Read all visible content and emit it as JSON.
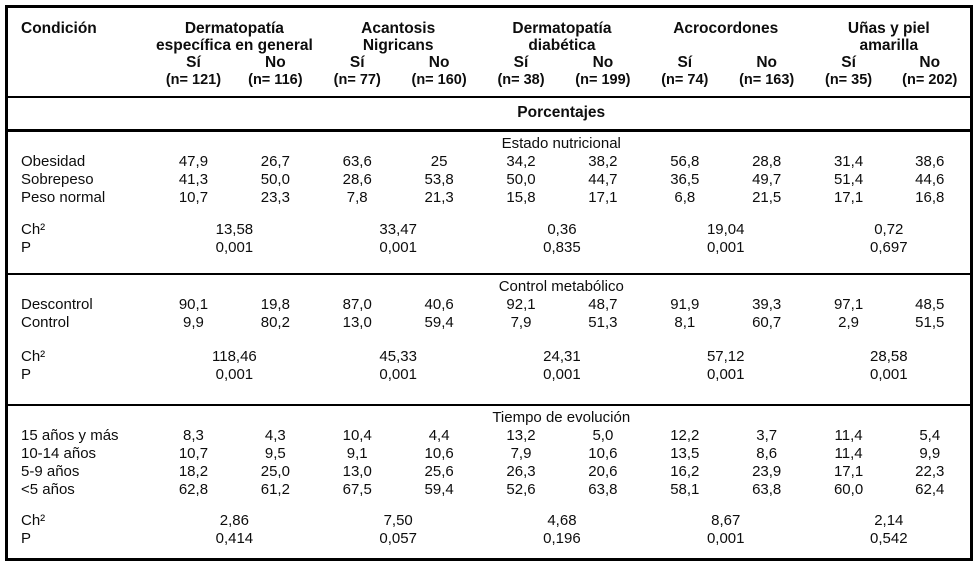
{
  "table": {
    "corner_label": "Condición",
    "percent_header": "Porcentajes",
    "groups": [
      {
        "title_line1": "Dermatopatía",
        "title_line2": "específica en general",
        "si_label": "Sí",
        "no_label": "No",
        "si_n": "(n= 121)",
        "no_n": "(n= 116)"
      },
      {
        "title_line1": "Acantosis",
        "title_line2": "Nigricans",
        "si_label": "Sí",
        "no_label": "No",
        "si_n": "(n= 77)",
        "no_n": "(n= 160)"
      },
      {
        "title_line1": "Dermatopatía",
        "title_line2": "diabética",
        "si_label": "Sí",
        "no_label": "No",
        "si_n": "(n= 38)",
        "no_n": "(n= 199)"
      },
      {
        "title_line1": "Acrocordones",
        "title_line2": "",
        "si_label": "Sí",
        "no_label": "No",
        "si_n": "(n= 74)",
        "no_n": "(n= 163)"
      },
      {
        "title_line1": "Uñas y piel",
        "title_line2": "amarilla",
        "si_label": "Sí",
        "no_label": "No",
        "si_n": "(n= 35)",
        "no_n": "(n= 202)"
      }
    ],
    "sections": [
      {
        "title": "Estado nutricional",
        "rows": [
          {
            "label": "Obesidad",
            "values": [
              "47,9",
              "26,7",
              "63,6",
              "25",
              "34,2",
              "38,2",
              "56,8",
              "28,8",
              "31,4",
              "38,6"
            ]
          },
          {
            "label": "Sobrepeso",
            "values": [
              "41,3",
              "50,0",
              "28,6",
              "53,8",
              "50,0",
              "44,7",
              "36,5",
              "49,7",
              "51,4",
              "44,6"
            ]
          },
          {
            "label": "Peso normal",
            "values": [
              "10,7",
              "23,3",
              "7,8",
              "21,3",
              "15,8",
              "17,1",
              "6,8",
              "21,5",
              "17,1",
              "16,8"
            ]
          }
        ],
        "chi_label": "Ch²",
        "p_label": "P",
        "chi": [
          "13,58",
          "33,47",
          "0,36",
          "19,04",
          "0,72"
        ],
        "p": [
          "0,001",
          "0,001",
          "0,835",
          "0,001",
          "0,697"
        ]
      },
      {
        "title": "Control metabólico",
        "rows": [
          {
            "label": "Descontrol",
            "values": [
              "90,1",
              "19,8",
              "87,0",
              "40,6",
              "92,1",
              "48,7",
              "91,9",
              "39,3",
              "97,1",
              "48,5"
            ]
          },
          {
            "label": "Control",
            "values": [
              "9,9",
              "80,2",
              "13,0",
              "59,4",
              "7,9",
              "51,3",
              "8,1",
              "60,7",
              "2,9",
              "51,5"
            ]
          }
        ],
        "chi_label": "Ch²",
        "p_label": "P",
        "chi": [
          "118,46",
          "45,33",
          "24,31",
          "57,12",
          "28,58"
        ],
        "p": [
          "0,001",
          "0,001",
          "0,001",
          "0,001",
          "0,001"
        ]
      },
      {
        "title": "Tiempo de evolución",
        "rows": [
          {
            "label": "15 años y más",
            "values": [
              "8,3",
              "4,3",
              "10,4",
              "4,4",
              "13,2",
              "5,0",
              "12,2",
              "3,7",
              "11,4",
              "5,4"
            ]
          },
          {
            "label": "10-14 años",
            "values": [
              "10,7",
              "9,5",
              "9,1",
              "10,6",
              "7,9",
              "10,6",
              "13,5",
              "8,6",
              "11,4",
              "9,9"
            ]
          },
          {
            "label": "5-9 años",
            "values": [
              "18,2",
              "25,0",
              "13,0",
              "25,6",
              "26,3",
              "20,6",
              "16,2",
              "23,9",
              "17,1",
              "22,3"
            ]
          },
          {
            "label": "<5 años",
            "values": [
              "62,8",
              "61,2",
              "67,5",
              "59,4",
              "52,6",
              "63,8",
              "58,1",
              "63,8",
              "60,0",
              "62,4"
            ]
          }
        ],
        "chi_label": "Ch²",
        "p_label": "P",
        "chi": [
          "2,86",
          "7,50",
          "4,68",
          "8,67",
          "2,14"
        ],
        "p": [
          "0,414",
          "0,057",
          "0,196",
          "0,001",
          "0,542"
        ]
      }
    ]
  }
}
